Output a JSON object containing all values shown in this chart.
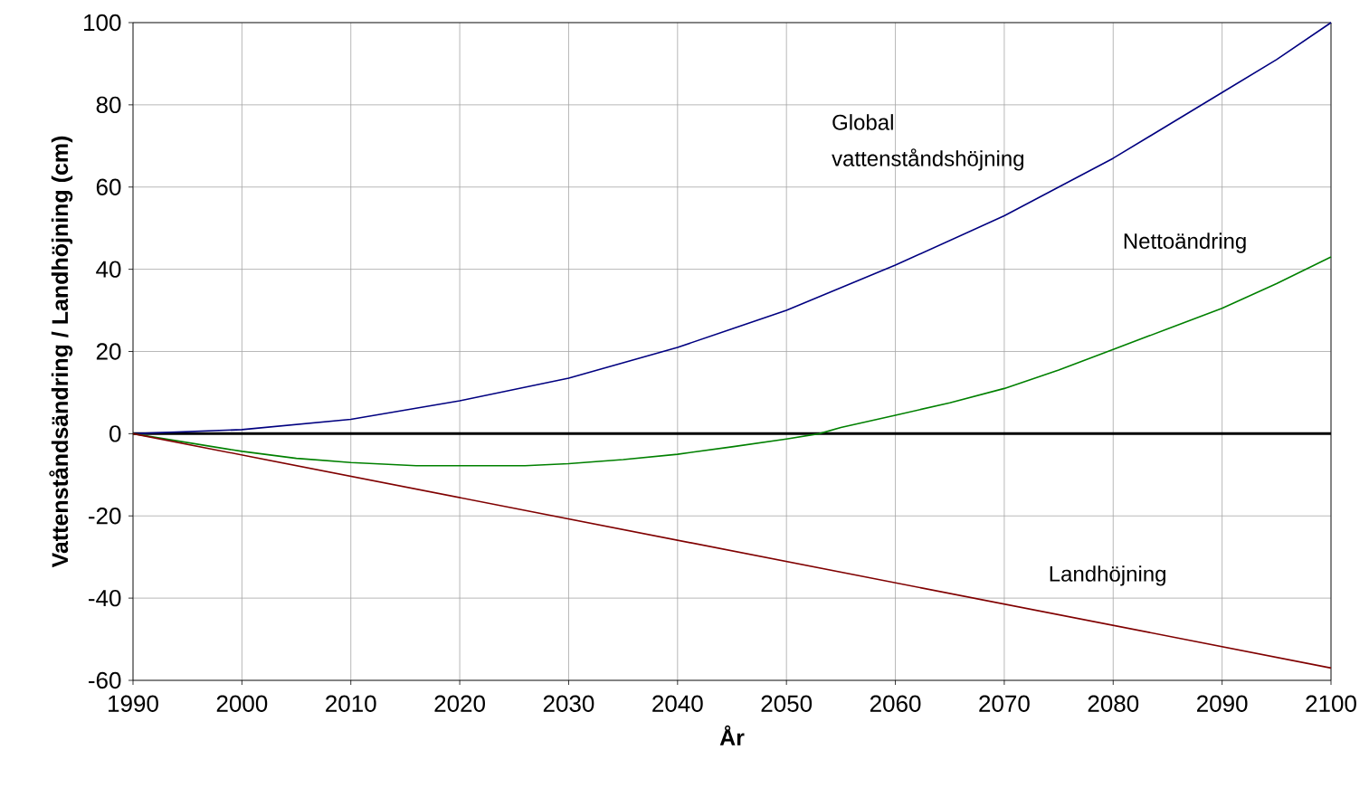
{
  "chart_data": {
    "type": "line",
    "xlabel": "År",
    "ylabel": "Vattenståndsändring / Landhöjning (cm)",
    "xlim": [
      1990,
      2100
    ],
    "ylim": [
      -60,
      100
    ],
    "xticks": [
      1990,
      2000,
      2010,
      2020,
      2030,
      2040,
      2050,
      2060,
      2070,
      2080,
      2090,
      2100
    ],
    "yticks": [
      -60,
      -40,
      -20,
      0,
      20,
      40,
      60,
      80,
      100
    ],
    "grid": true,
    "series": [
      {
        "name": "Global vattenståndshöjning",
        "color": "#000080",
        "x": [
          1990,
          2000,
          2010,
          2020,
          2030,
          2040,
          2045,
          2050,
          2055,
          2060,
          2065,
          2070,
          2075,
          2080,
          2085,
          2090,
          2095,
          2100
        ],
        "values": [
          0,
          1,
          3.5,
          8,
          13.5,
          21,
          25.5,
          30,
          35.5,
          41,
          47,
          53,
          60,
          67,
          75,
          83,
          91,
          100
        ]
      },
      {
        "name": "Nettoändring",
        "color": "#008000",
        "x": [
          1990,
          2000,
          2005,
          2010,
          2016,
          2020,
          2026,
          2030,
          2035,
          2040,
          2045,
          2050,
          2053,
          2055,
          2060,
          2065,
          2070,
          2075,
          2080,
          2085,
          2090,
          2095,
          2100
        ],
        "values": [
          0,
          -4.3,
          -6,
          -7,
          -7.8,
          -7.8,
          -7.8,
          -7.3,
          -6.3,
          -5,
          -3.2,
          -1.3,
          0,
          1.5,
          4.5,
          7.5,
          11,
          15.5,
          20.5,
          25.5,
          30.5,
          36.5,
          43
        ]
      },
      {
        "name": "Landhöjning",
        "color": "#800000",
        "x": [
          1990,
          2100
        ],
        "values": [
          0,
          -57
        ]
      }
    ],
    "ref_lines": [
      {
        "axis": "y",
        "value": 0,
        "color": "#000000"
      }
    ]
  }
}
